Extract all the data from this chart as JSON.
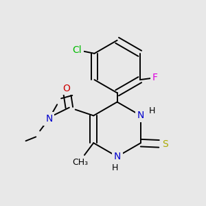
{
  "background_color": "#e8e8e8",
  "figsize": [
    3.0,
    3.0
  ],
  "dpi": 100,
  "atom_colors": {
    "C": "#000000",
    "N": "#0000cc",
    "O": "#cc0000",
    "S": "#aaaa00",
    "Cl": "#00bb00",
    "F": "#dd00dd",
    "H": "#000000"
  },
  "bond_color": "#000000",
  "bond_width": 1.4,
  "font_size": 10
}
